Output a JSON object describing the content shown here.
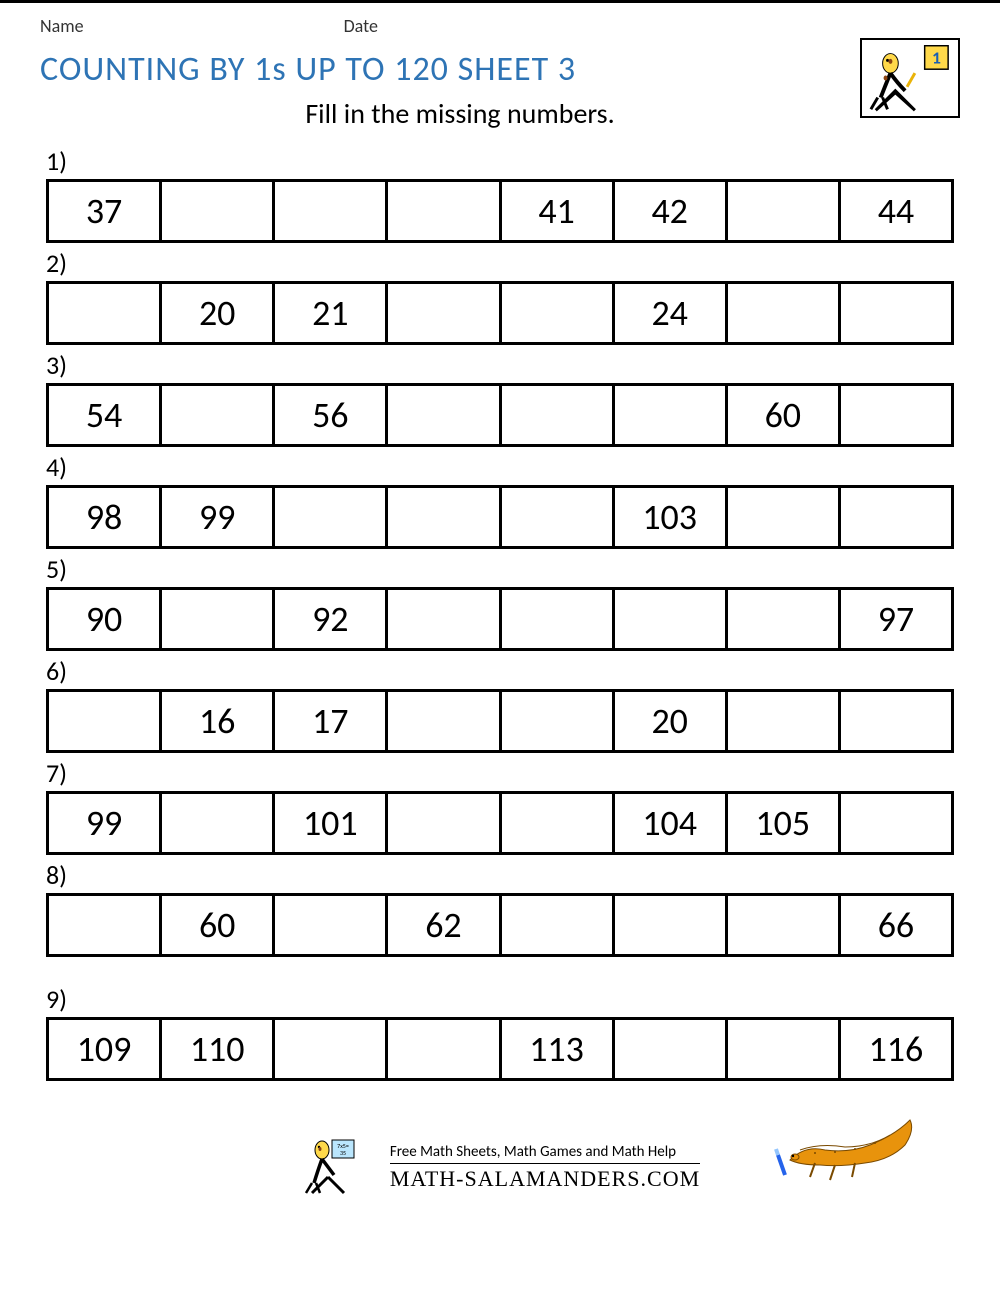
{
  "meta": {
    "name_label": "Name",
    "date_label": "Date"
  },
  "title": "COUNTING BY 1s UP TO 120 SHEET 3",
  "instruction": "Fill in the missing numbers.",
  "title_color": "#2e74b5",
  "cell_font_size": 36,
  "border_color": "#000000",
  "background_color": "#ffffff",
  "cells_per_row": 8,
  "problems": [
    {
      "label": "1)",
      "cells": [
        "37",
        "",
        "",
        "",
        "41",
        "42",
        "",
        "44"
      ],
      "spaced": false
    },
    {
      "label": "2)",
      "cells": [
        "",
        "20",
        "21",
        "",
        "",
        "24",
        "",
        ""
      ],
      "spaced": false
    },
    {
      "label": "3)",
      "cells": [
        "54",
        "",
        "56",
        "",
        "",
        "",
        "60",
        ""
      ],
      "spaced": false
    },
    {
      "label": "4)",
      "cells": [
        "98",
        "99",
        "",
        "",
        "",
        "103",
        "",
        ""
      ],
      "spaced": false
    },
    {
      "label": "5)",
      "cells": [
        "90",
        "",
        "92",
        "",
        "",
        "",
        "",
        "97"
      ],
      "spaced": false
    },
    {
      "label": "6)",
      "cells": [
        "",
        "16",
        "17",
        "",
        "",
        "20",
        "",
        ""
      ],
      "spaced": false
    },
    {
      "label": "7)",
      "cells": [
        "99",
        "",
        "101",
        "",
        "",
        "104",
        "105",
        ""
      ],
      "spaced": false
    },
    {
      "label": "8)",
      "cells": [
        "",
        "60",
        "",
        "62",
        "",
        "",
        "",
        "66"
      ],
      "spaced": false
    },
    {
      "label": "9)",
      "cells": [
        "109",
        "110",
        "",
        "",
        "113",
        "",
        "",
        "116"
      ],
      "spaced": true
    }
  ],
  "footer": {
    "line1": "Free Math Sheets, Math Games and Math Help",
    "line2": "MATH-SALAMANDERS.COM"
  },
  "badge_number": "1"
}
